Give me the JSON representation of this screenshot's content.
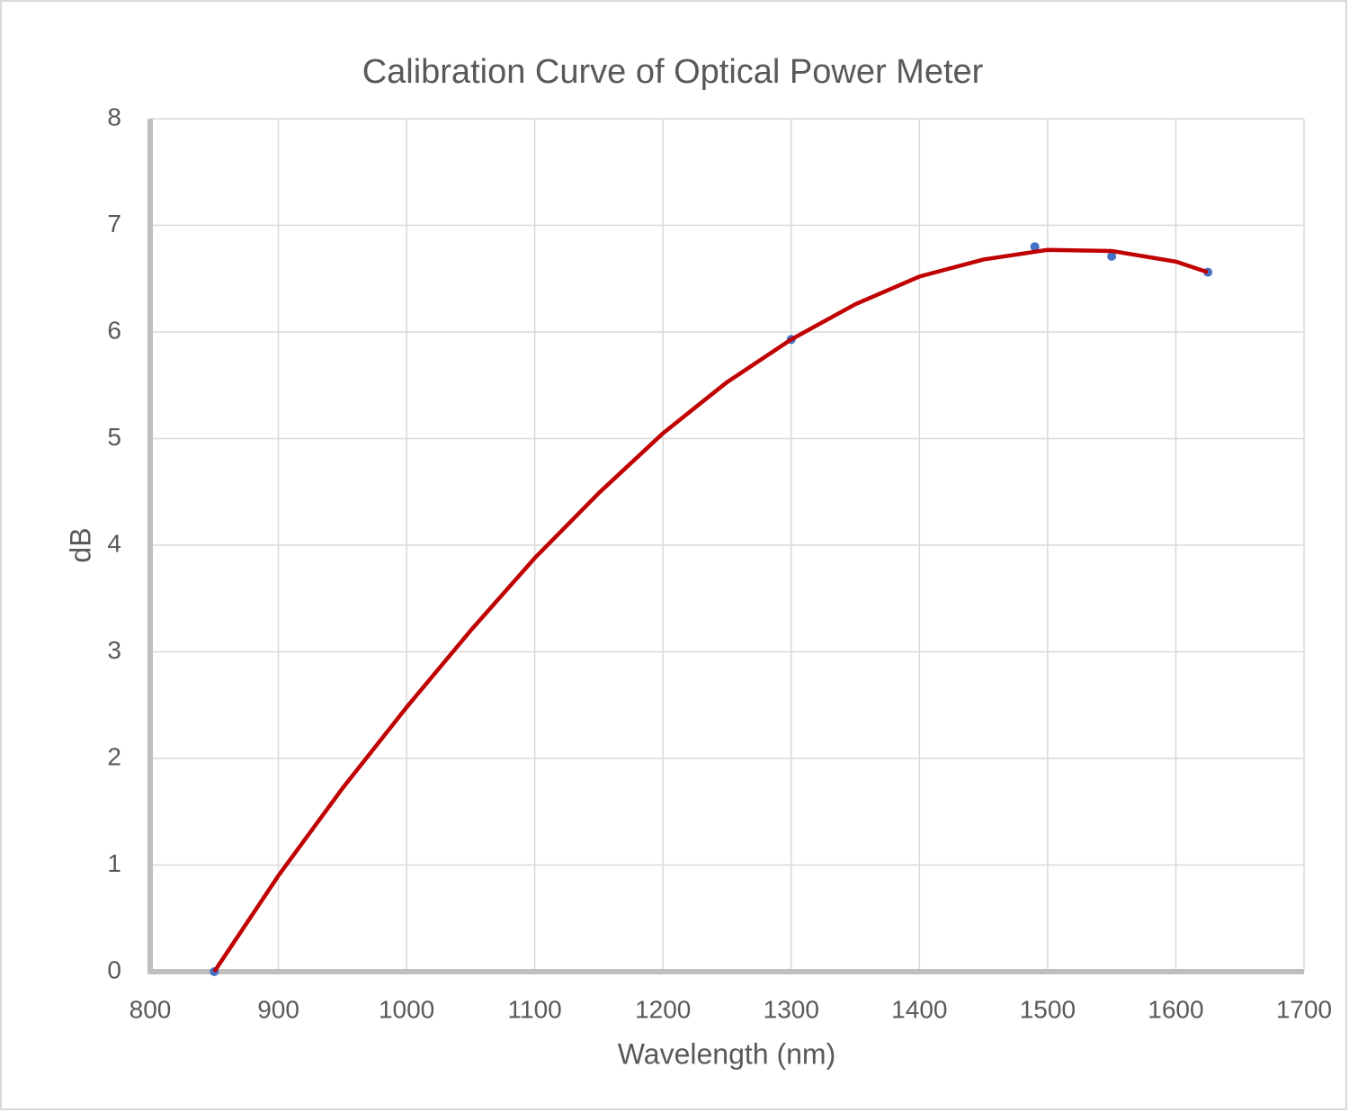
{
  "chart_data": {
    "type": "scatter",
    "title": "Calibration Curve of Optical Power Meter",
    "x_label": "Wavelength (nm)",
    "y_label": "dB",
    "xlim": [
      800,
      1700
    ],
    "xticks": [
      800,
      900,
      1000,
      1100,
      1200,
      1300,
      1400,
      1500,
      1600,
      1700
    ],
    "ylim": [
      0,
      8
    ],
    "yticks": [
      0,
      1,
      2,
      3,
      4,
      5,
      6,
      7,
      8
    ],
    "grid": true,
    "series": [
      {
        "type": "scatter",
        "color": "#4472c4",
        "x": [
          850,
          1300,
          1490,
          1550,
          1625
        ],
        "values": [
          0,
          5.93,
          6.8,
          6.71,
          6.56
        ]
      },
      {
        "type": "line",
        "color": "#c00000",
        "x": [
          850,
          900,
          950,
          1000,
          1050,
          1100,
          1150,
          1200,
          1250,
          1300,
          1350,
          1400,
          1450,
          1500,
          1550,
          1600,
          1625
        ],
        "values": [
          0,
          0.9,
          1.72,
          2.48,
          3.2,
          3.88,
          4.49,
          5.05,
          5.53,
          5.93,
          6.26,
          6.52,
          6.68,
          6.77,
          6.76,
          6.66,
          6.56
        ]
      }
    ]
  }
}
